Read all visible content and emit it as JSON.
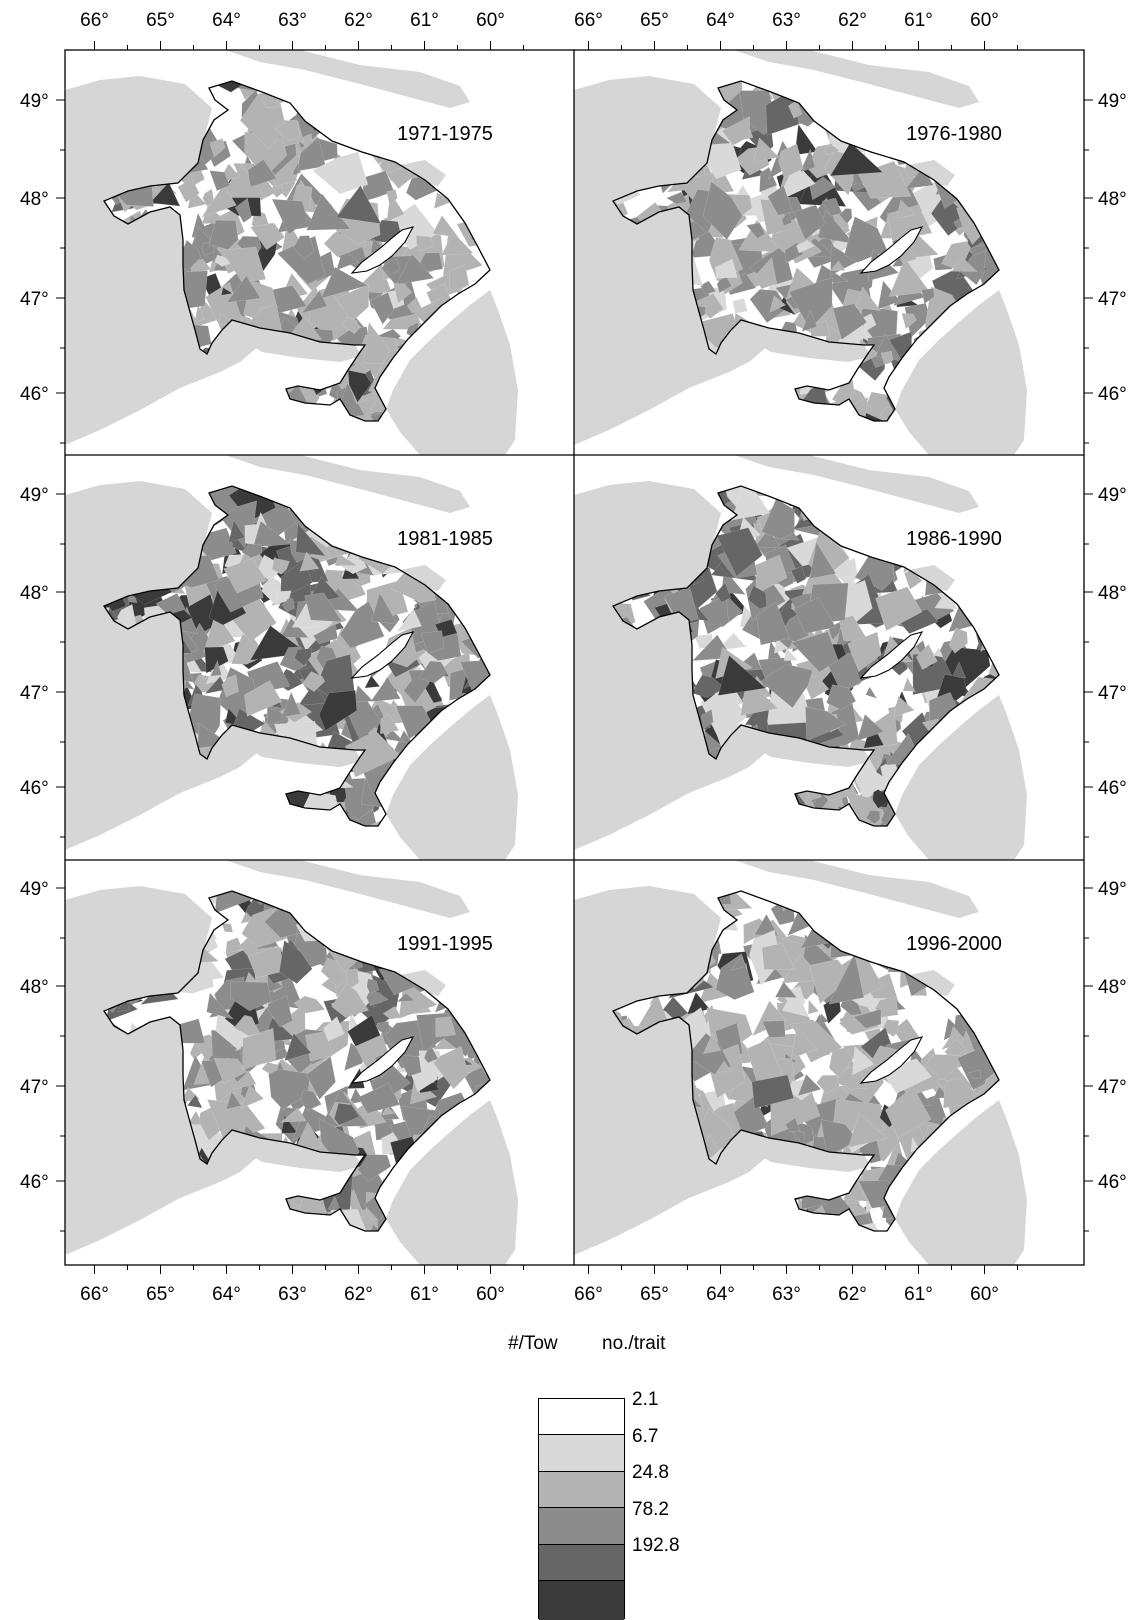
{
  "map": {
    "lon_ticks": [
      "66°",
      "65°",
      "64°",
      "63°",
      "62°",
      "61°",
      "60°"
    ],
    "lat_ticks": [
      "49°",
      "48°",
      "47°",
      "46°"
    ],
    "panels": [
      {
        "period": "1971-1975",
        "abundance": "low-moderate"
      },
      {
        "period": "1976-1980",
        "abundance": "moderate"
      },
      {
        "period": "1981-1985",
        "abundance": "very high"
      },
      {
        "period": "1986-1990",
        "abundance": "high"
      },
      {
        "period": "1991-1995",
        "abundance": "moderate-high"
      },
      {
        "period": "1996-2000",
        "abundance": "moderate"
      }
    ]
  },
  "legend": {
    "unit_en": "#/Tow",
    "unit_fr": "no./trait",
    "breaks": [
      "2.1",
      "6.7",
      "24.8",
      "78.2",
      "192.8"
    ],
    "colors": [
      "#d9d9d9",
      "#b3b3b3",
      "#8c8c8c",
      "#666666",
      "#3a3a3a"
    ],
    "land_color": "#d6d6d6"
  }
}
